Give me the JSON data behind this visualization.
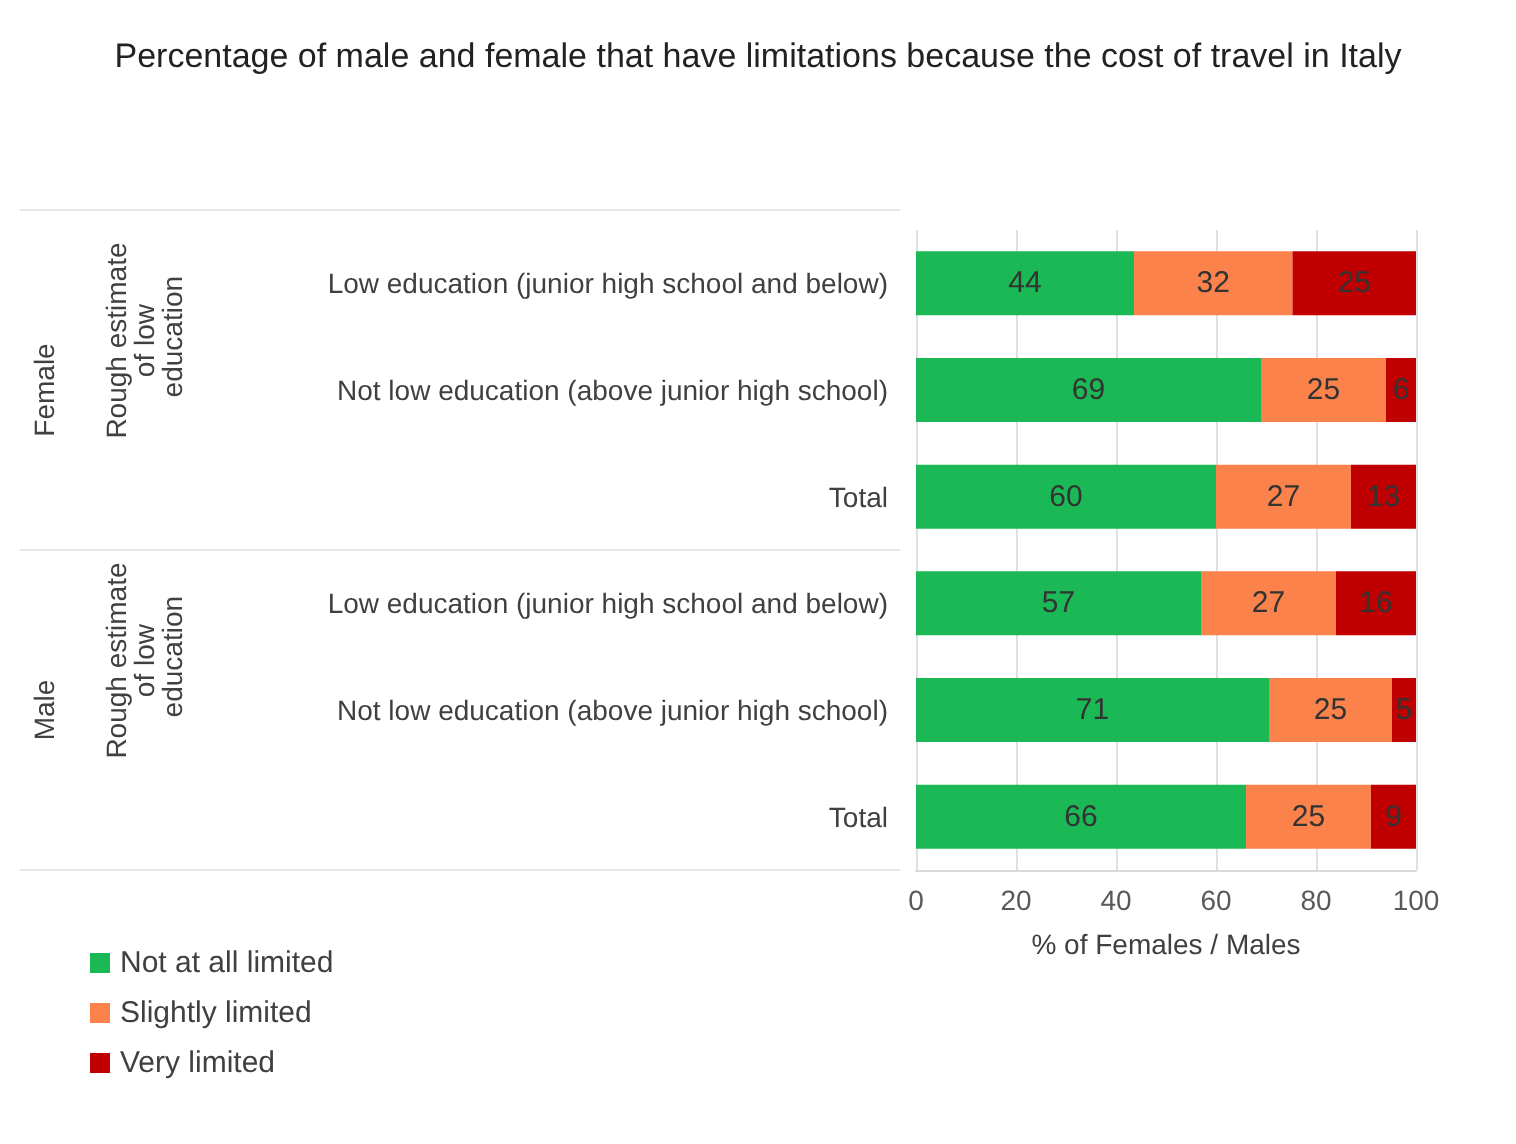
{
  "chart_data": {
    "type": "bar",
    "orientation": "horizontal",
    "stacked": true,
    "title": "Percentage of male and female that have limitations because the cost of travel in Italy",
    "xlabel": "% of Females / Males",
    "categories": [
      "Low education (junior high school and below)",
      "Not low education (above junior high school)",
      "Total",
      "Low education (junior high school and below)",
      "Not low education (above junior high school)",
      "Total"
    ],
    "series": [
      {
        "name": "Not at all limited",
        "color": "#1bb955",
        "values": [
          43.6,
          69,
          60,
          57,
          70.6,
          66
        ],
        "value_labels": [
          "44",
          "69",
          "60",
          "57",
          "71",
          "66"
        ]
      },
      {
        "name": "Slightly limited",
        "color": "#fb824a",
        "values": [
          31.7,
          25,
          27,
          27,
          24.6,
          25
        ],
        "value_labels": [
          "32",
          "25",
          "27",
          "27",
          "25",
          "25"
        ]
      },
      {
        "name": "Very limited",
        "color": "#c00000",
        "values": [
          24.7,
          6,
          13,
          16,
          4.8,
          9
        ],
        "value_labels": [
          "25",
          "6",
          "13",
          "16",
          "5",
          "9"
        ]
      }
    ],
    "annotations": [
      "Female",
      "Rough estimate of low education",
      "Male",
      "Rough estimate of low education"
    ],
    "xlim": [
      0,
      100
    ],
    "xticks": [
      0,
      20,
      40,
      60,
      80,
      100
    ],
    "grid": "x",
    "legend": "bottom left"
  }
}
